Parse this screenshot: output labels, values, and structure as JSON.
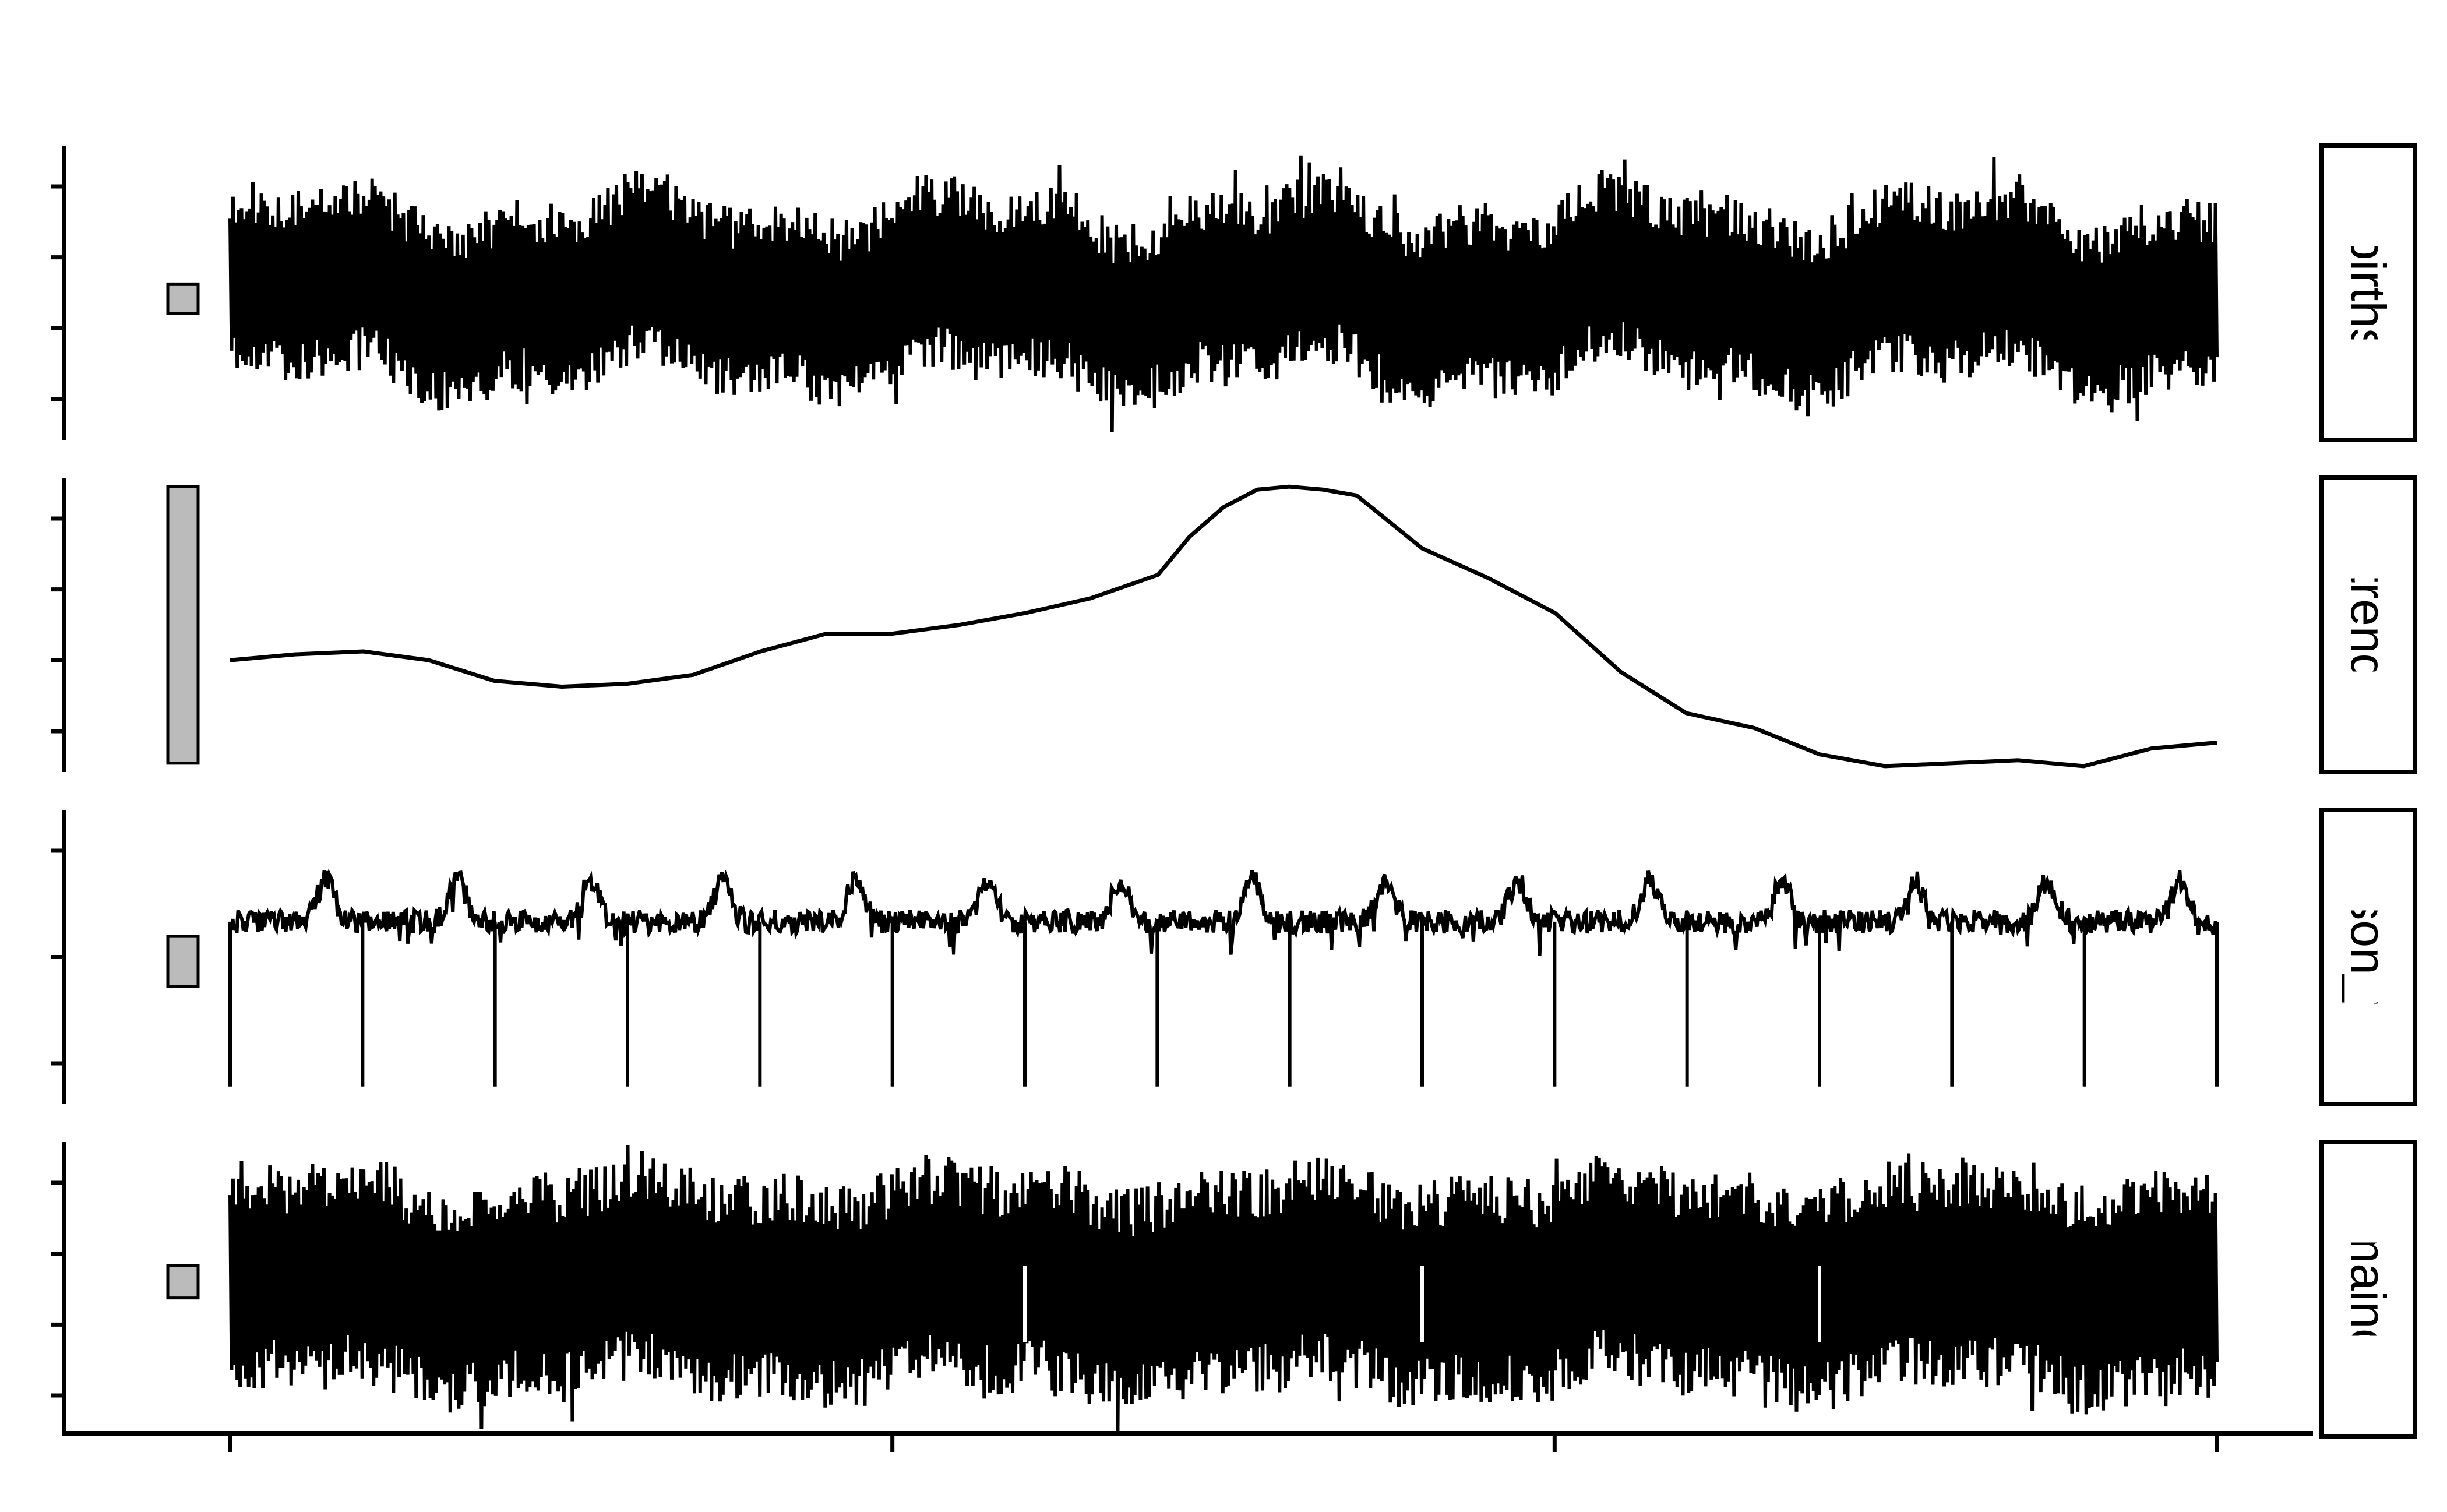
{
  "figure": {
    "title": "",
    "xlabel": "",
    "ylabel": ""
  },
  "chart_data": {
    "type": "line",
    "layout": "stacked-facets",
    "x_tick_count": 4,
    "range_bar_fill": "#bbbbbb",
    "line_color": "#000000",
    "background": "#ffffff",
    "panels": [
      {
        "name": "births",
        "kind": "noisy",
        "level": 0.5,
        "spread": 0.33,
        "wiggle": 0.06,
        "spikes": [],
        "range_bar": [
          0.43,
          0.53
        ],
        "y_tick_count": 4
      },
      {
        "name": "trend",
        "kind": "smooth",
        "range_bar": [
          0.03,
          0.97
        ],
        "y_tick_count": 4,
        "x": [
          0,
          0.033,
          0.067,
          0.1,
          0.133,
          0.167,
          0.2,
          0.233,
          0.267,
          0.3,
          0.333,
          0.367,
          0.4,
          0.433,
          0.467,
          0.483,
          0.5,
          0.517,
          0.533,
          0.55,
          0.567,
          0.6,
          0.633,
          0.667,
          0.7,
          0.733,
          0.767,
          0.8,
          0.833,
          0.867,
          0.9,
          0.933,
          0.967,
          1
        ],
        "values": [
          0.38,
          0.4,
          0.41,
          0.38,
          0.31,
          0.29,
          0.3,
          0.33,
          0.41,
          0.47,
          0.47,
          0.5,
          0.54,
          0.59,
          0.67,
          0.8,
          0.9,
          0.96,
          0.97,
          0.96,
          0.94,
          0.76,
          0.66,
          0.54,
          0.34,
          0.2,
          0.15,
          0.06,
          0.02,
          0.03,
          0.04,
          0.02,
          0.08,
          0.1
        ]
      },
      {
        "name": "season_year",
        "kind": "seasonal",
        "level": 0.62,
        "amp": 0.14,
        "noise": 0.04,
        "periods": 15,
        "spike_depth": 0.08,
        "range_bar": [
          0.4,
          0.57
        ],
        "y_tick_count": 3
      },
      {
        "name": "remainder",
        "kind": "noisy",
        "level": 0.52,
        "spread": 0.39,
        "wiggle": 0.04,
        "spikes": [
          0.4,
          0.6,
          0.8
        ],
        "range_bar": [
          0.47,
          0.58
        ],
        "y_tick_count": 4
      }
    ]
  }
}
